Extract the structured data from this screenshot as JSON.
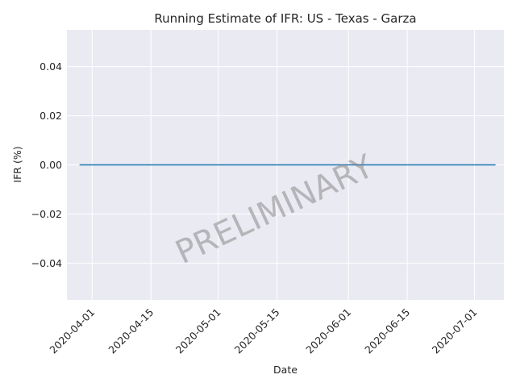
{
  "chart_data": {
    "type": "line",
    "title": "Running Estimate of IFR: US - Texas - Garza",
    "xlabel": "Date",
    "ylabel": "IFR (%)",
    "watermark": "PRELIMINARY",
    "x_range": [
      "2020-03-26",
      "2020-07-08"
    ],
    "x_ticks": [
      "2020-04-01",
      "2020-04-15",
      "2020-05-01",
      "2020-05-15",
      "2020-06-01",
      "2020-06-15",
      "2020-07-01"
    ],
    "ylim": [
      -0.055,
      0.055
    ],
    "y_ticks": [
      -0.04,
      -0.02,
      0.0,
      0.02,
      0.04
    ],
    "y_tick_labels": [
      "−0.04",
      "−0.02",
      "0.00",
      "0.02",
      "0.04"
    ],
    "grid": true,
    "series": [
      {
        "color": "#1f77b4",
        "x": [
          "2020-03-29",
          "2020-07-06"
        ],
        "values": [
          0.0,
          0.0
        ]
      }
    ],
    "colors": {
      "background": "#eaeaf2",
      "grid": "#ffffff",
      "line": "#1f77b4"
    }
  }
}
